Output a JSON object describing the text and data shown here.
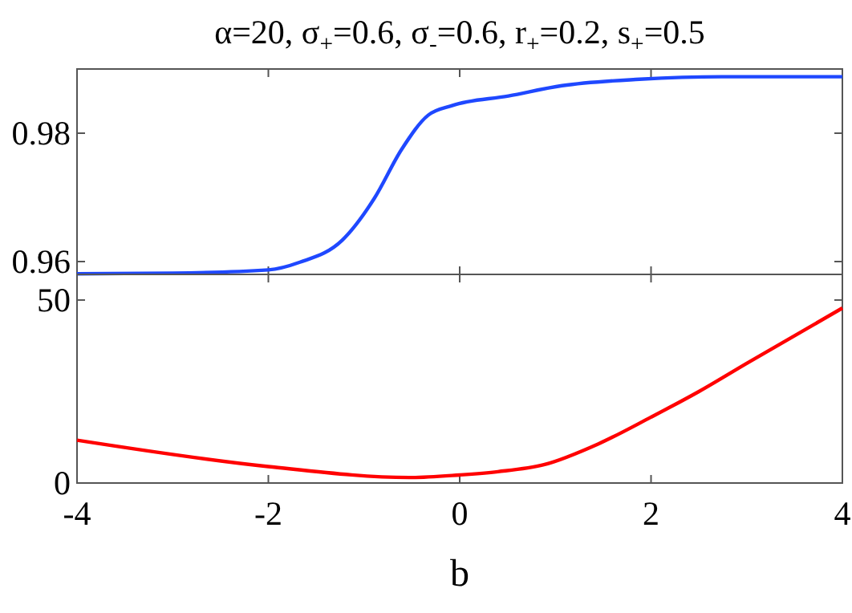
{
  "chart_data": [
    {
      "type": "line",
      "title": "α=20, σ$_{+}$=0.6, σ$_{-}$=0.6, r$_{+}$=0.2, s$_{+}$=0.5",
      "x": [
        -4,
        -3,
        -2,
        -1.67,
        -1.23,
        -0.89,
        -0.61,
        -0.33,
        -0.08,
        0.51,
        1.07,
        1.88,
        2.74,
        4
      ],
      "series": [
        {
          "color": "#1f48ff",
          "values": [
            0.9581,
            0.9582,
            0.9587,
            0.9599,
            0.9633,
            0.9699,
            0.9774,
            0.9828,
            0.9843,
            0.9858,
            0.9874,
            0.9884,
            0.9888,
            0.9888
          ]
        }
      ],
      "xlim": [
        -4,
        4
      ],
      "xticks": [
        {
          "value": -4,
          "label": null
        },
        {
          "value": -2,
          "label": null
        },
        {
          "value": 0,
          "label": null
        },
        {
          "value": 2,
          "label": null
        },
        {
          "value": 4,
          "label": null
        }
      ],
      "ylim": [
        0.958,
        0.99
      ],
      "yticks": [
        0.96,
        0.98
      ],
      "tick_labels": "y"
    },
    {
      "type": "line",
      "xlabel": "b",
      "x": [
        -4,
        -2,
        -0.5,
        0,
        0.4,
        0.88,
        1.45,
        2,
        2.5,
        3,
        4
      ],
      "series": [
        {
          "color": "#ff0000",
          "values": [
            11.7,
            4.5,
            1.5,
            2.2,
            3.1,
            5,
            10.7,
            18,
            25,
            32.7,
            47.8
          ]
        }
      ],
      "xlim": [
        -4,
        4
      ],
      "xticks": [
        -4,
        -2,
        0,
        2,
        4
      ],
      "ylim": [
        0,
        57
      ],
      "yticks": [
        0,
        50
      ]
    }
  ]
}
